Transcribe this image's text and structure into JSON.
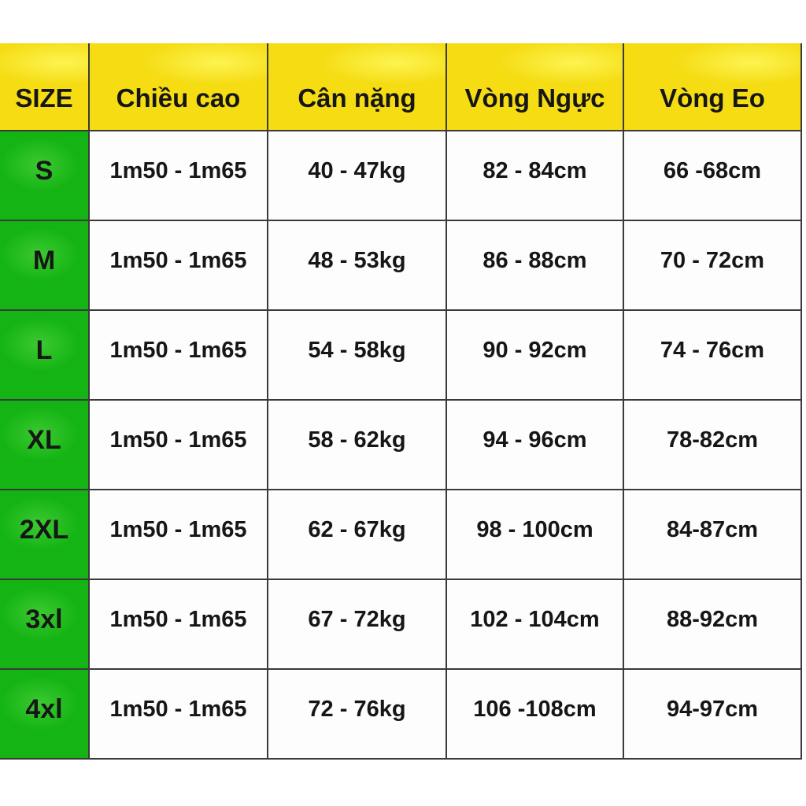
{
  "title": "Size chart (Vietnamese clothing size table)",
  "colors": {
    "header_bg": "#f5dc13",
    "size_column_bg": "#14b414",
    "border": "#3a3a3a",
    "text": "#161616",
    "page_bg": "#ffffff"
  },
  "chart_data": {
    "type": "table",
    "title": "",
    "columns": [
      "SIZE",
      "Chiều cao",
      "Cân nặng",
      "Vòng Ngực",
      "Vòng Eo"
    ],
    "rows": [
      [
        "S",
        "1m50 - 1m65",
        "40 - 47kg",
        "82 - 84cm",
        "66 -68cm"
      ],
      [
        "M",
        "1m50 - 1m65",
        "48 - 53kg",
        "86 - 88cm",
        "70 - 72cm"
      ],
      [
        "L",
        "1m50 - 1m65",
        "54 - 58kg",
        "90 - 92cm",
        "74 - 76cm"
      ],
      [
        "XL",
        "1m50 - 1m65",
        "58 - 62kg",
        "94 - 96cm",
        "78-82cm"
      ],
      [
        "2XL",
        "1m50 - 1m65",
        "62 - 67kg",
        "98 - 100cm",
        "84-87cm"
      ],
      [
        "3xl",
        "1m50 - 1m65",
        "67 - 72kg",
        "102 - 104cm",
        "88-92cm"
      ],
      [
        "4xl",
        "1m50 - 1m65",
        "72 - 76kg",
        "106 -108cm",
        "94-97cm"
      ]
    ],
    "layout": {
      "header_row": "yellow",
      "first_column": "green",
      "grid": "thin dark lines",
      "legend": "none"
    }
  }
}
